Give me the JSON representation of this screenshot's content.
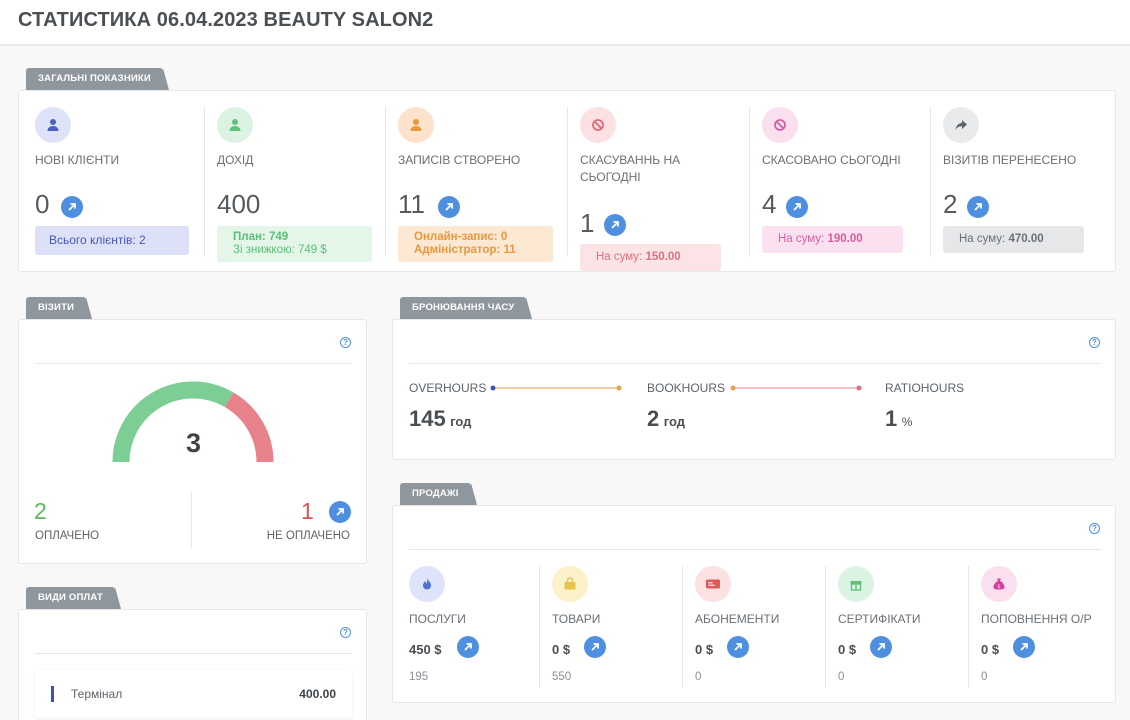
{
  "header": {
    "title": "СТАТИСТИКА 06.04.2023 BEAUTY SALON2"
  },
  "general": {
    "tag": "ЗАГАЛЬНІ ПОКАЗНИКИ",
    "new_clients": {
      "label": "НОВІ КЛІЄНТИ",
      "value": "0",
      "box": "Всього клієнтів: 2"
    },
    "income": {
      "label": "ДОХІД",
      "value": "400",
      "plan": "План: 749",
      "discount": "Зі знижкою: 749 $"
    },
    "records": {
      "label": "ЗАПИСІВ СТВОРЕНО",
      "value": "11",
      "online": "Онлайн-запис: 0",
      "admin": "Адміністратор: 11"
    },
    "cancel_today": {
      "label": "СКАСУВАННЬ НА СЬОГОДНІ",
      "value": "1",
      "box_prefix": "На суму:",
      "box_amount": "150.00"
    },
    "cancelled_today": {
      "label": "СКАСОВАНО СЬОГОДНІ",
      "value": "4",
      "box_prefix": "На суму:",
      "box_amount": "190.00"
    },
    "moved": {
      "label": "ВІЗИТІВ ПЕРЕНЕСЕНО",
      "value": "2",
      "box_prefix": "На суму:",
      "box_amount": "470.00"
    }
  },
  "visits": {
    "tag": "ВІЗИТИ",
    "total": "3",
    "paid_fraction": 0.667,
    "paid": {
      "value": "2",
      "label": "ОПЛАЧЕНО"
    },
    "unpaid": {
      "value": "1",
      "label": "НЕ ОПЛАЧЕНО"
    },
    "help": "?"
  },
  "payments": {
    "tag": "ВИДИ ОПЛАТ",
    "help": "?",
    "rows": [
      {
        "name": "Термінал",
        "amount": "400.00"
      }
    ]
  },
  "booking": {
    "tag": "БРОНЮВАННЯ ЧАСУ",
    "help": "?",
    "overhours": {
      "label": "OVERHOURS",
      "value": "145",
      "unit": "год"
    },
    "bookhours": {
      "label": "BOOKHOURS",
      "value": "2",
      "unit": "год"
    },
    "ratiohours": {
      "label": "RATIOHOURS",
      "value": "1",
      "unit": "%"
    }
  },
  "sales": {
    "tag": "ПРОДАЖІ",
    "help": "?",
    "items": [
      {
        "label": "ПОСЛУГИ",
        "amount": "450 $",
        "count": "195"
      },
      {
        "label": "ТОВАРИ",
        "amount": "0 $",
        "count": "550"
      },
      {
        "label": "АБОНЕМЕНТИ",
        "amount": "0 $",
        "count": "0"
      },
      {
        "label": "СЕРТИФІКАТИ",
        "amount": "0 $",
        "count": "0"
      },
      {
        "label": "ПОПОВНЕННЯ О/Р",
        "amount": "0 $",
        "count": "0"
      }
    ]
  },
  "colors": {
    "accent": "#4f8fe0",
    "green": "#7dce94",
    "red": "#e8828a",
    "paid_text": "#5cb85c",
    "unpaid_text": "#d9534f"
  },
  "icons": {
    "new_clients": "user-icon",
    "income": "user-icon",
    "records": "user-icon",
    "cancel_today": "ban-icon",
    "cancelled_today": "ban-icon",
    "moved": "share-arrow-icon",
    "services": "flame-icon",
    "goods": "bag-icon",
    "subscriptions": "ticket-icon",
    "certificates": "gift-icon",
    "topup": "money-bag-icon"
  }
}
